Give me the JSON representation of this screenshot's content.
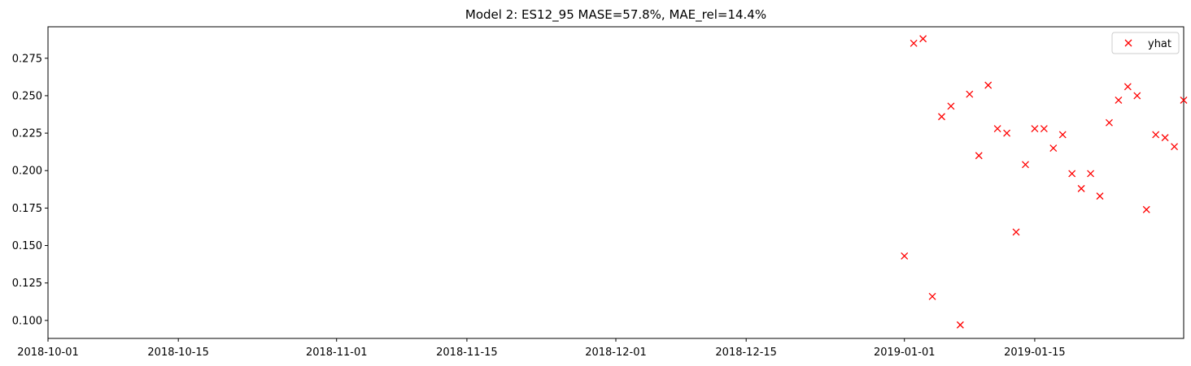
{
  "chart_data": {
    "type": "scatter",
    "title": "Model 2: ES12_95 MASE=57.8%, MAE_rel=14.4%",
    "xlabel": "",
    "ylabel": "",
    "xlim": [
      "2018-10-01",
      "2019-01-31"
    ],
    "ylim": [
      0.088,
      0.296
    ],
    "x_ticks": [
      "2018-10-01",
      "2018-10-15",
      "2018-11-01",
      "2018-11-15",
      "2018-12-01",
      "2018-12-15",
      "2019-01-01",
      "2019-01-15"
    ],
    "y_ticks": [
      "0.100",
      "0.125",
      "0.150",
      "0.175",
      "0.200",
      "0.225",
      "0.250",
      "0.275"
    ],
    "grid": false,
    "legend": {
      "placement": "top-right"
    },
    "series": [
      {
        "name": "yhat",
        "marker": "x",
        "color": "#ff0000",
        "points": [
          {
            "x": "2019-01-01",
            "y": 0.143
          },
          {
            "x": "2019-01-02",
            "y": 0.285
          },
          {
            "x": "2019-01-03",
            "y": 0.288
          },
          {
            "x": "2019-01-04",
            "y": 0.116
          },
          {
            "x": "2019-01-05",
            "y": 0.236
          },
          {
            "x": "2019-01-06",
            "y": 0.243
          },
          {
            "x": "2019-01-07",
            "y": 0.097
          },
          {
            "x": "2019-01-08",
            "y": 0.251
          },
          {
            "x": "2019-01-09",
            "y": 0.21
          },
          {
            "x": "2019-01-10",
            "y": 0.257
          },
          {
            "x": "2019-01-11",
            "y": 0.228
          },
          {
            "x": "2019-01-12",
            "y": 0.225
          },
          {
            "x": "2019-01-13",
            "y": 0.159
          },
          {
            "x": "2019-01-14",
            "y": 0.204
          },
          {
            "x": "2019-01-15",
            "y": 0.228
          },
          {
            "x": "2019-01-16",
            "y": 0.228
          },
          {
            "x": "2019-01-17",
            "y": 0.215
          },
          {
            "x": "2019-01-18",
            "y": 0.224
          },
          {
            "x": "2019-01-19",
            "y": 0.198
          },
          {
            "x": "2019-01-20",
            "y": 0.188
          },
          {
            "x": "2019-01-21",
            "y": 0.198
          },
          {
            "x": "2019-01-22",
            "y": 0.183
          },
          {
            "x": "2019-01-23",
            "y": 0.232
          },
          {
            "x": "2019-01-24",
            "y": 0.247
          },
          {
            "x": "2019-01-25",
            "y": 0.256
          },
          {
            "x": "2019-01-26",
            "y": 0.25
          },
          {
            "x": "2019-01-27",
            "y": 0.174
          },
          {
            "x": "2019-01-28",
            "y": 0.224
          },
          {
            "x": "2019-01-29",
            "y": 0.222
          },
          {
            "x": "2019-01-30",
            "y": 0.216
          },
          {
            "x": "2019-01-31",
            "y": 0.247
          }
        ]
      }
    ]
  }
}
